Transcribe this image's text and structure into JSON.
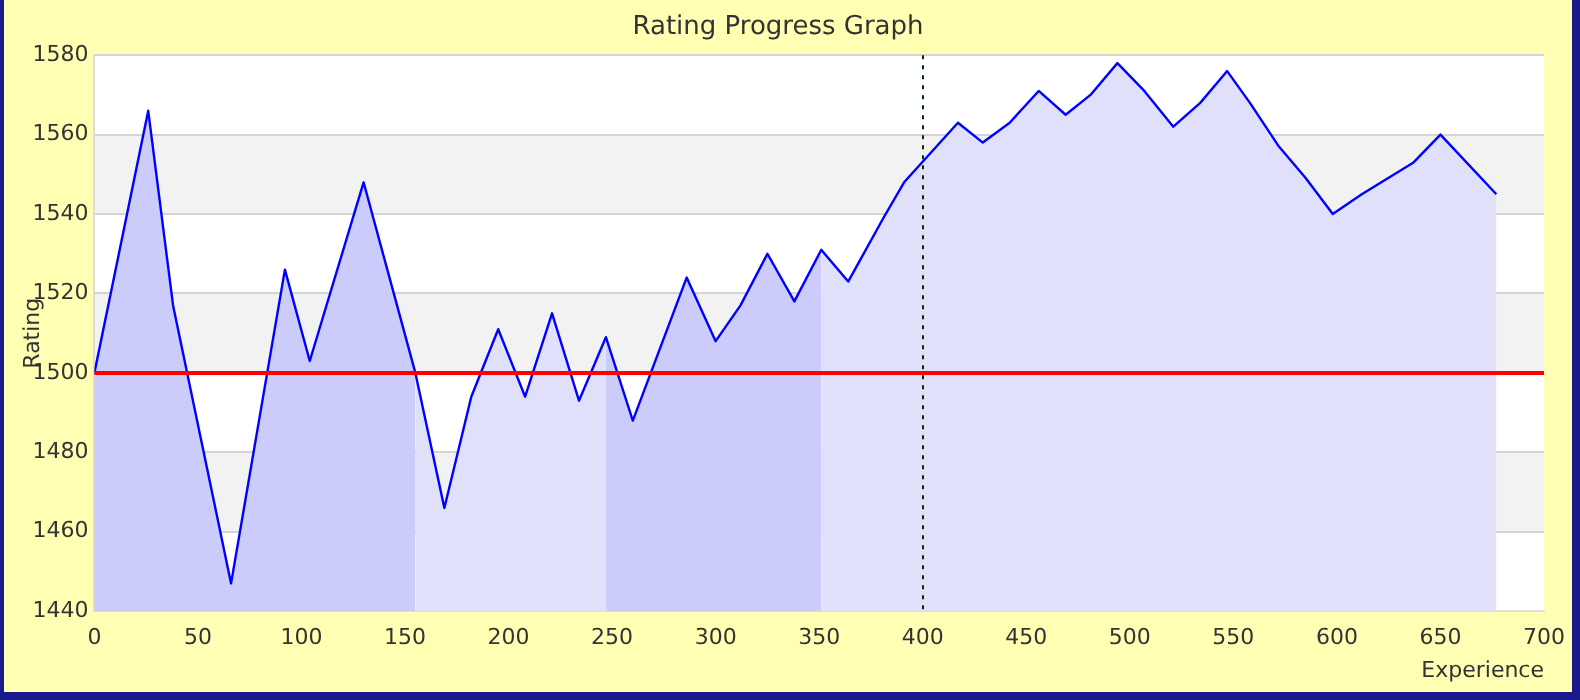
{
  "chart_data": {
    "type": "area",
    "title": "Rating Progress Graph",
    "xlabel": "Experience",
    "ylabel": "Rating",
    "xlim": [
      0,
      700
    ],
    "xticks": [
      0,
      50,
      100,
      150,
      200,
      250,
      300,
      350,
      400,
      450,
      500,
      550,
      600,
      650,
      700
    ],
    "ylim": [
      1440,
      1580
    ],
    "yticks": [
      1440,
      1460,
      1480,
      1500,
      1520,
      1540,
      1560,
      1580
    ],
    "grid": "y",
    "legend": false,
    "marker": "none",
    "series": [
      {
        "color": "#ccccfa",
        "x": [
          0,
          26,
          38,
          66,
          92,
          104,
          130,
          155
        ],
        "values": [
          1500,
          1566,
          1517,
          1447,
          1526,
          1503,
          1548,
          1500
        ]
      },
      {
        "color": "#e0e0fb",
        "x": [
          155,
          169,
          182,
          195,
          208,
          221,
          234,
          247
        ],
        "values": [
          1500,
          1466,
          1494,
          1511,
          1494,
          1515,
          1493,
          1509
        ]
      },
      {
        "color": "#ccccfa",
        "x": [
          247,
          260,
          286,
          300,
          312,
          325,
          338,
          351
        ],
        "values": [
          1509,
          1488,
          1524,
          1508,
          1517,
          1530,
          1518,
          1531
        ]
      },
      {
        "color": "#e0e0fb",
        "x": [
          351,
          364,
          381,
          391,
          417,
          429,
          442,
          456,
          469,
          481,
          494,
          507,
          521,
          534,
          547,
          558,
          572,
          585,
          598,
          612,
          637,
          650,
          677
        ],
        "values": [
          1531,
          1523,
          1539,
          1548,
          1563,
          1558,
          1563,
          1571,
          1565,
          1570,
          1578,
          1571,
          1562,
          1568,
          1576,
          1568,
          1557,
          1549,
          1540,
          1545,
          1553,
          1560,
          1545
        ]
      },
      {
        "type": "line",
        "color": "#0000ff",
        "line_style": "solid",
        "x": [
          0,
          26,
          38,
          66,
          92,
          104,
          130,
          155,
          169,
          182,
          195,
          208,
          221,
          234,
          247,
          260,
          286,
          300,
          312,
          325,
          338,
          351,
          364,
          381,
          391,
          417,
          429,
          442,
          456,
          469,
          481,
          494,
          507,
          521,
          534,
          547,
          558,
          572,
          585,
          598,
          612,
          637,
          650,
          677
        ],
        "values": [
          1500,
          1566,
          1517,
          1447,
          1526,
          1503,
          1548,
          1500,
          1466,
          1494,
          1511,
          1494,
          1515,
          1493,
          1509,
          1488,
          1524,
          1508,
          1517,
          1530,
          1518,
          1531,
          1523,
          1539,
          1548,
          1563,
          1558,
          1563,
          1571,
          1565,
          1570,
          1578,
          1571,
          1562,
          1568,
          1576,
          1568,
          1557,
          1549,
          1540,
          1545,
          1553,
          1560,
          1545
        ]
      }
    ],
    "bands": [
      {
        "axis": "y",
        "from": 1460,
        "to": 1480,
        "color": "#f2f2f2"
      },
      {
        "axis": "y",
        "from": 1500,
        "to": 1520,
        "color": "#f2f2f2"
      },
      {
        "axis": "y",
        "from": 1540,
        "to": 1560,
        "color": "#f2f2f2"
      }
    ],
    "ref_lines": [
      {
        "axis": "y",
        "value": 1500,
        "color": "#ff0000",
        "line_style": "solid"
      },
      {
        "axis": "x",
        "value": 400,
        "color": "#003300",
        "line_style": "dotted"
      }
    ]
  }
}
